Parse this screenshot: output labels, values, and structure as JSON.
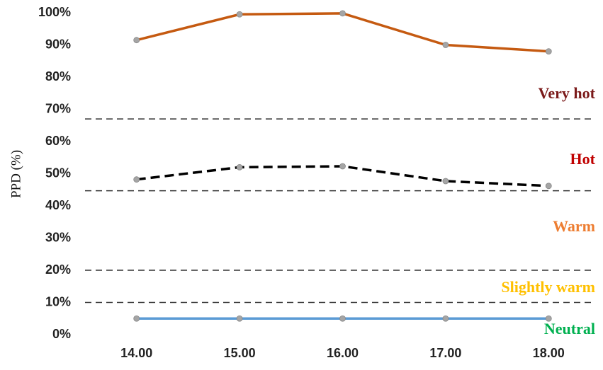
{
  "chart_data": {
    "type": "line",
    "y_label": "PPD (%)",
    "categories": [
      "14.00",
      "15.00",
      "16.00",
      "17.00",
      "18.00"
    ],
    "series": [
      {
        "color": "#c55a11",
        "line_style": "solid",
        "values": [
          91.5,
          99.5,
          99.8,
          90,
          88
        ]
      },
      {
        "color": "#000000",
        "line_style": "dashed",
        "values": [
          48.2,
          52,
          52.3,
          47.7,
          46.2
        ]
      },
      {
        "color": "#5b9bd5",
        "line_style": "solid",
        "values": [
          5,
          5,
          5,
          5,
          5
        ]
      }
    ],
    "marker_color": "#a5a5a5",
    "reference_lines": [
      67,
      44.7,
      20,
      10
    ],
    "zones": [
      {
        "label": "Very hot",
        "color": "#7b1a1a"
      },
      {
        "label": "Hot",
        "color": "#c00000"
      },
      {
        "label": "Warm",
        "color": "#ed7d31"
      },
      {
        "label": "Slightly warm",
        "color": "#ffc000"
      },
      {
        "label": "Neutral",
        "color": "#00b050"
      }
    ],
    "ylim": [
      0,
      100
    ],
    "yticks": [
      {
        "value": 0,
        "label": "0%"
      },
      {
        "value": 10,
        "label": "10%"
      },
      {
        "value": 20,
        "label": "20%"
      },
      {
        "value": 30,
        "label": "30%"
      },
      {
        "value": 40,
        "label": "40%"
      },
      {
        "value": 50,
        "label": "50%"
      },
      {
        "value": 60,
        "label": "60%"
      },
      {
        "value": 70,
        "label": "70%"
      },
      {
        "value": 80,
        "label": "80%"
      },
      {
        "value": 90,
        "label": "90%"
      },
      {
        "value": 100,
        "label": "100%"
      }
    ]
  }
}
